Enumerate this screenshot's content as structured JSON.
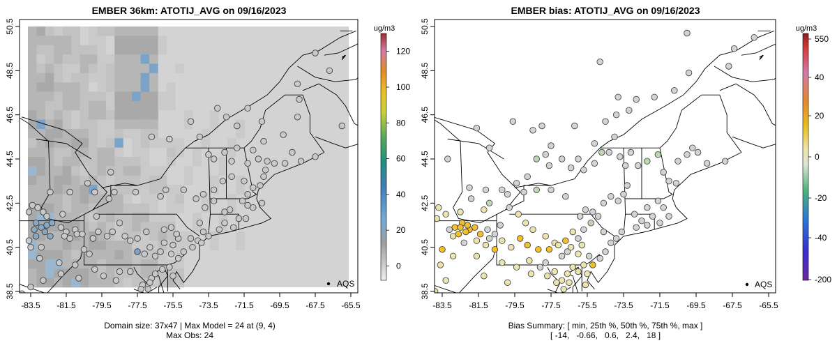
{
  "chart_data": [
    {
      "type": "heatmap",
      "title": "EMBER 36km: ATOTIJ_AVG on 09/16/2023",
      "x_ticks": [
        -83.5,
        -81.5,
        -79.5,
        -77.5,
        -75.5,
        -73.5,
        -71.5,
        -69.5,
        -67.5,
        -65.5
      ],
      "y_ticks": [
        38.5,
        40.5,
        42.5,
        44.5,
        46.5,
        48.5,
        50.5
      ],
      "xlim": [
        -84.4,
        -64.6
      ],
      "ylim": [
        38.4,
        50.7
      ],
      "grid": false,
      "colorbar": {
        "label": "ug/m3",
        "ticks": [
          0,
          20,
          40,
          60,
          80,
          100,
          120
        ],
        "range": [
          -8,
          130
        ]
      },
      "legend": {
        "marker_label": "AQS",
        "placement": "bottom-right"
      },
      "footer": [
        "Domain size: 37x47 | Max Model = 24 at (9, 4)",
        "Max Obs: 24"
      ],
      "domain_size": "37x47",
      "max_model": {
        "value": 24,
        "cell": [
          9,
          4
        ]
      },
      "max_obs": 24
    },
    {
      "type": "scatter",
      "title": "EMBER bias: ATOTIJ_AVG on 09/16/2023",
      "x_ticks": [
        -83.5,
        -81.5,
        -79.5,
        -77.5,
        -75.5,
        -73.5,
        -71.5,
        -69.5,
        -67.5,
        -65.5
      ],
      "y_ticks": [
        38.5,
        40.5,
        42.5,
        44.5,
        46.5,
        48.5,
        50.5
      ],
      "xlim": [
        -84.4,
        -64.6
      ],
      "ylim": [
        38.4,
        50.7
      ],
      "grid": false,
      "colorbar": {
        "label": "ug/m3",
        "ticks": [
          550,
          40,
          20,
          0,
          -20,
          -40,
          -200
        ]
      },
      "legend": {
        "marker_label": "AQS",
        "placement": "bottom-right"
      },
      "footer": [
        "Bias Summary: [ min, 25th %, 50th %, 75th %, max ]",
        "[ -14,   -0.66,   0.6,   2.4,   18 ]"
      ],
      "bias_summary": {
        "min": -14,
        "p25": -0.66,
        "p50": 0.6,
        "p75": 2.4,
        "max": 18
      }
    }
  ],
  "colors": {
    "background_model": "#d3d3d3",
    "ocean": "#ffffff",
    "map_lines": "#000000",
    "neutral_marker": "#d3d3d3",
    "high_bias": "#f0c030",
    "med_bias": "#ece4b0"
  },
  "legend_marker_icon": "filled-circle-icon"
}
